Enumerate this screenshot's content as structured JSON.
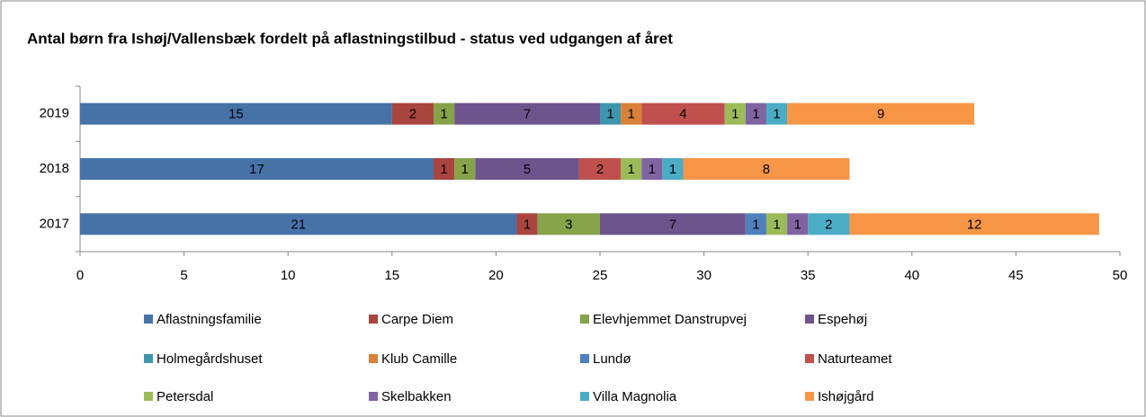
{
  "chart_data": {
    "type": "bar",
    "orientation": "horizontal",
    "stacked": true,
    "title": "Antal børn fra Ishøj/Vallensbæk fordelt på aflastningstilbud - status ved udgangen af året",
    "categories": [
      "2017",
      "2018",
      "2019"
    ],
    "series": [
      {
        "name": "Aflastningsfamilie",
        "color": "#4672a8",
        "values": [
          21,
          17,
          15
        ]
      },
      {
        "name": "Carpe Diem",
        "color": "#a9443f",
        "values": [
          1,
          1,
          2
        ]
      },
      {
        "name": "Elevhjemmet Danstrupvej",
        "color": "#86a34a",
        "values": [
          3,
          1,
          1
        ]
      },
      {
        "name": "Espehøj",
        "color": "#6e548d",
        "values": [
          7,
          5,
          7
        ]
      },
      {
        "name": "Holmegårdshuset",
        "color": "#3d96ae",
        "values": [
          0,
          0,
          1
        ]
      },
      {
        "name": "Klub Camille",
        "color": "#da8137",
        "values": [
          0,
          0,
          1
        ]
      },
      {
        "name": "Lundø",
        "color": "#4f81bd",
        "values": [
          1,
          0,
          0
        ]
      },
      {
        "name": "Naturteamet",
        "color": "#c0504d",
        "values": [
          0,
          2,
          4
        ]
      },
      {
        "name": "Petersdal",
        "color": "#9bbb59",
        "values": [
          1,
          1,
          1
        ]
      },
      {
        "name": "Skelbakken",
        "color": "#8064a2",
        "values": [
          1,
          1,
          1
        ]
      },
      {
        "name": "Villa Magnolia",
        "color": "#4bacc6",
        "values": [
          2,
          1,
          1
        ]
      },
      {
        "name": "Ishøjgård",
        "color": "#f79646",
        "values": [
          12,
          8,
          9
        ]
      }
    ],
    "xlim": [
      0,
      50
    ],
    "xticks": [
      0,
      5,
      10,
      15,
      20,
      25,
      30,
      35,
      40,
      45,
      50
    ],
    "legend": "bottom"
  }
}
